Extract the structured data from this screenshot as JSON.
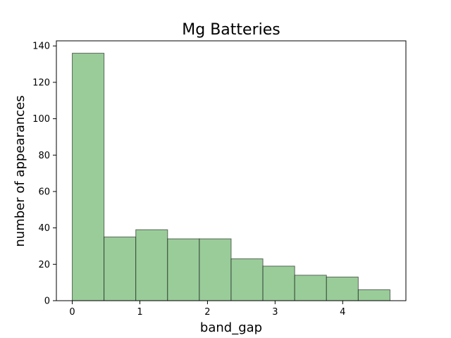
{
  "chart_data": {
    "type": "bar",
    "title": "Mg Batteries",
    "xlabel": "band_gap",
    "ylabel": "number of appearances",
    "bin_edges": [
      0.0,
      0.47,
      0.94,
      1.41,
      1.88,
      2.35,
      2.82,
      3.29,
      3.76,
      4.23,
      4.7
    ],
    "values": [
      136,
      35,
      39,
      34,
      34,
      23,
      19,
      14,
      13,
      6
    ],
    "xlim": [
      -0.235,
      4.935
    ],
    "ylim": [
      0,
      142.8
    ],
    "xticks": [
      0,
      1,
      2,
      3,
      4
    ],
    "yticks": [
      0,
      20,
      40,
      60,
      80,
      100,
      120,
      140
    ],
    "grid": false,
    "bar_color": "#99cc99",
    "edge_color": "#000000"
  }
}
